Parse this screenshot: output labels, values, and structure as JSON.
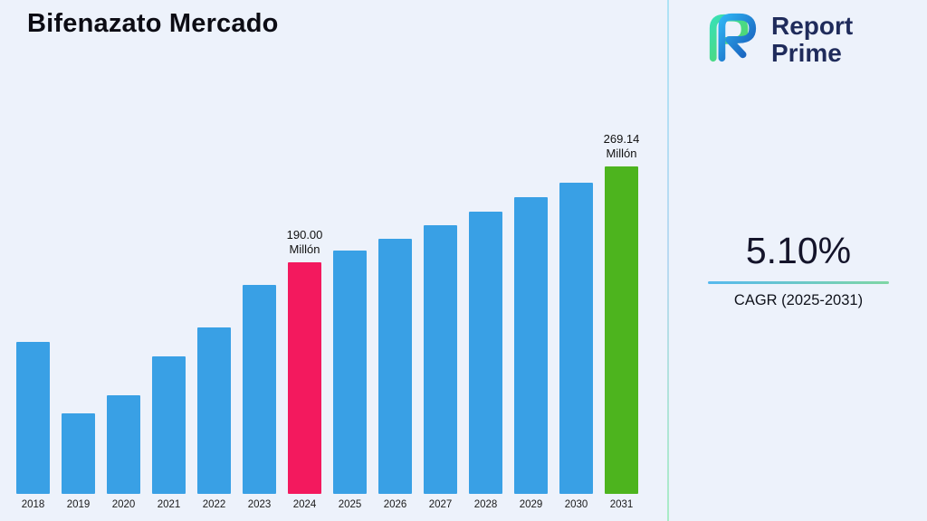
{
  "page": {
    "background": "#edf2fb"
  },
  "header": {
    "title": "Bifenazato Mercado"
  },
  "logo": {
    "line1": "Report",
    "line2": "Prime",
    "text_color": "#1f2b5b"
  },
  "cagr": {
    "value": "5.10%",
    "label": "CAGR (2025-2031)"
  },
  "chart_data": {
    "type": "bar",
    "title": "Bifenazato Mercado",
    "unit": "Millón",
    "categories": [
      "2018",
      "2019",
      "2020",
      "2021",
      "2022",
      "2023",
      "2024",
      "2025",
      "2026",
      "2027",
      "2028",
      "2029",
      "2030",
      "2031"
    ],
    "values": [
      125,
      66,
      81,
      113,
      137,
      172,
      190,
      199.7,
      209.9,
      220.6,
      231.8,
      243.7,
      256.1,
      269.14
    ],
    "ylim": [
      0,
      280
    ],
    "grid": false,
    "legend": null,
    "colors": {
      "default": "#39A0E5"
    },
    "highlighted": {
      "2024": {
        "color": "#F3195E",
        "label_lines": [
          "190.00",
          "Millón"
        ]
      },
      "2031": {
        "color": "#4DB41E",
        "label_lines": [
          "269.14",
          "Millón"
        ]
      }
    }
  }
}
